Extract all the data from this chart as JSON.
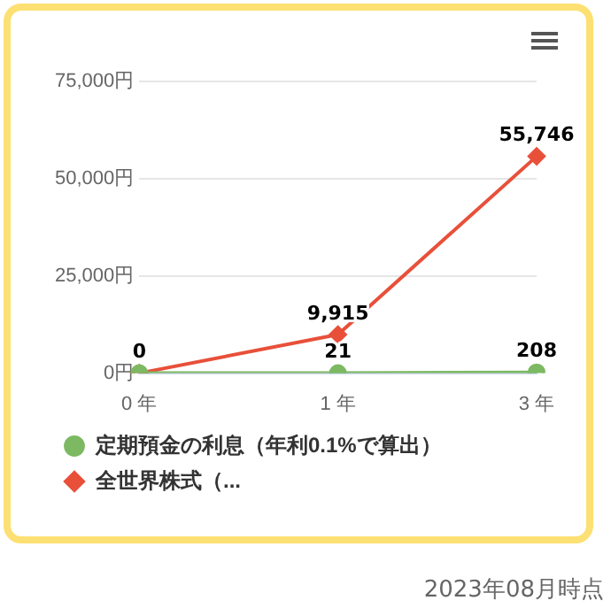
{
  "chart_data": {
    "type": "line",
    "categories": [
      "0 年",
      "1 年",
      "3 年"
    ],
    "series": [
      {
        "name": "定期預金の利息（年利0.1%で算出）",
        "color": "#7cb962",
        "marker": "circle",
        "values": [
          0,
          21,
          208
        ],
        "value_labels": [
          "0",
          "21",
          "208"
        ]
      },
      {
        "name": "全世界株式（...",
        "color": "#e8503a",
        "marker": "diamond",
        "values": [
          0,
          9915,
          55746
        ],
        "value_labels": [
          null,
          "9,915",
          "55,746"
        ]
      }
    ],
    "ylim": [
      0,
      75000
    ],
    "yticks": [
      {
        "value": 0,
        "label": "0円"
      },
      {
        "value": 25000,
        "label": "25,000円"
      },
      {
        "value": 50000,
        "label": "50,000円"
      },
      {
        "value": 75000,
        "label": "75,000円"
      }
    ],
    "grid": "y",
    "legend": "bottom",
    "line_style": "solid",
    "annotations": [
      "2023年08月時点"
    ]
  }
}
